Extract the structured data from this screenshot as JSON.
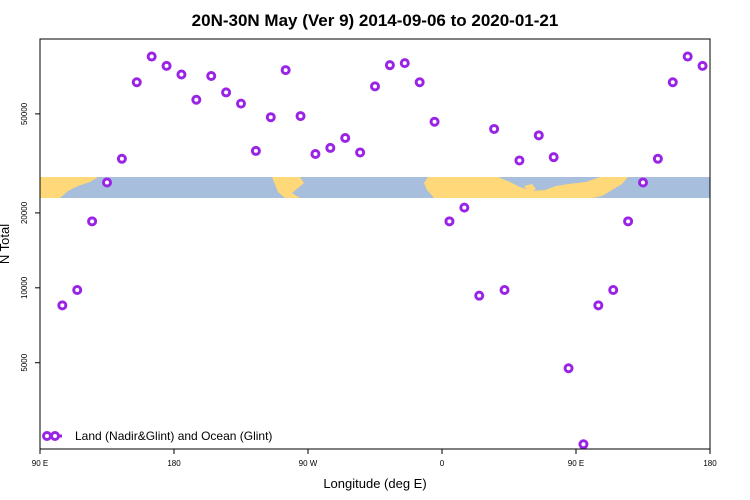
{
  "chart_data": {
    "type": "scatter",
    "title": "20N-30N May (Ver 9)   2014-09-06 to 2020-01-21",
    "xlabel": "Longitude (deg E)",
    "ylabel": "N Total",
    "x_ticks": [
      {
        "value": -90,
        "label": "90 E"
      },
      {
        "value": 0,
        "label": "180"
      },
      {
        "value": 90,
        "label": "90 W"
      },
      {
        "value": 180,
        "label": "0"
      },
      {
        "value": 270,
        "label": "90 E"
      },
      {
        "value": 360,
        "label": "180"
      }
    ],
    "xlim": [
      -90,
      360
    ],
    "y_scale": "log",
    "y_ticks": [
      5000,
      10000,
      20000,
      50000
    ],
    "ylim": [
      2250,
      100000
    ],
    "grid": false,
    "colors": {
      "point_stroke": "#9a24e6",
      "ocean": "#a7bedc",
      "land": "#ffd879"
    },
    "series": [
      {
        "name": "Land (Nadir&Glint) and Ocean (Glint)",
        "points": [
          {
            "x": -75,
            "y": 8500
          },
          {
            "x": -65,
            "y": 9800
          },
          {
            "x": -55,
            "y": 18500
          },
          {
            "x": -45,
            "y": 26500
          },
          {
            "x": -35,
            "y": 33000
          },
          {
            "x": -25,
            "y": 67000
          },
          {
            "x": -15,
            "y": 85000
          },
          {
            "x": -5,
            "y": 78000
          },
          {
            "x": 5,
            "y": 72000
          },
          {
            "x": 15,
            "y": 57000
          },
          {
            "x": 25,
            "y": 71000
          },
          {
            "x": 35,
            "y": 61000
          },
          {
            "x": 45,
            "y": 55000
          },
          {
            "x": 55,
            "y": 35500
          },
          {
            "x": 65,
            "y": 48500
          },
          {
            "x": 75,
            "y": 75000
          },
          {
            "x": 85,
            "y": 49000
          },
          {
            "x": 95,
            "y": 34500
          },
          {
            "x": 105,
            "y": 36500
          },
          {
            "x": 115,
            "y": 40000
          },
          {
            "x": 125,
            "y": 35000
          },
          {
            "x": 135,
            "y": 64500
          },
          {
            "x": 145,
            "y": 78500
          },
          {
            "x": 155,
            "y": 80000
          },
          {
            "x": 165,
            "y": 67000
          },
          {
            "x": 175,
            "y": 46500
          },
          {
            "x": 185,
            "y": 18500
          },
          {
            "x": 195,
            "y": 21000
          },
          {
            "x": 205,
            "y": 9300
          },
          {
            "x": 215,
            "y": 43500
          },
          {
            "x": 222,
            "y": 9800
          },
          {
            "x": 232,
            "y": 32500
          },
          {
            "x": 245,
            "y": 41000
          },
          {
            "x": 255,
            "y": 33500
          },
          {
            "x": 265,
            "y": 4750
          },
          {
            "x": 275,
            "y": 2350
          },
          {
            "x": 285,
            "y": 8500
          },
          {
            "x": 295,
            "y": 9800
          },
          {
            "x": 305,
            "y": 18500
          },
          {
            "x": 315,
            "y": 26500
          },
          {
            "x": 325,
            "y": 33000
          },
          {
            "x": 335,
            "y": 67000
          },
          {
            "x": 345,
            "y": 85000
          },
          {
            "x": 355,
            "y": 78000
          }
        ]
      }
    ],
    "legend": {
      "position": "bottom-left",
      "entries": [
        "Land (Nadir&Glint) and Ocean (Glint)"
      ]
    }
  }
}
